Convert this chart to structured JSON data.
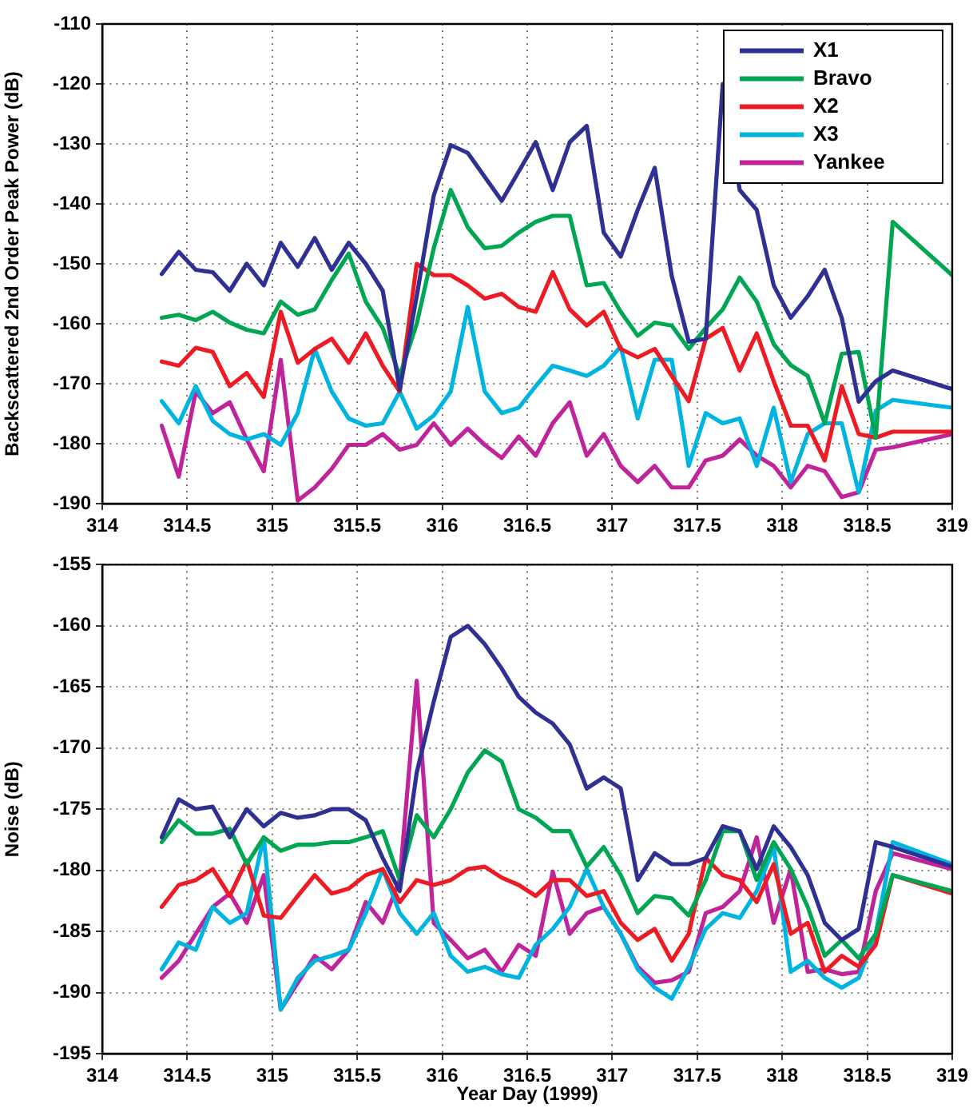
{
  "chart_data": [
    {
      "type": "line",
      "ylabel": "Backscattered 2nd Order Peak Power (dB)",
      "x": [
        314.35,
        314.45,
        314.55,
        314.65,
        314.75,
        314.85,
        314.95,
        315.05,
        315.15,
        315.25,
        315.35,
        315.45,
        315.55,
        315.65,
        315.75,
        315.85,
        315.95,
        316.05,
        316.15,
        316.25,
        316.35,
        316.45,
        316.55,
        316.65,
        316.75,
        316.85,
        316.95,
        317.05,
        317.15,
        317.25,
        317.35,
        317.45,
        317.55,
        317.65,
        317.75,
        317.85,
        317.95,
        318.05,
        318.15,
        318.25,
        318.35,
        318.45,
        318.55,
        318.65,
        319
      ],
      "series": [
        {
          "name": "X1",
          "color": "#2e3192",
          "values": [
            -151.7,
            -148,
            -151,
            -151.4,
            -154.5,
            -150,
            -153.6,
            -146.5,
            -150.5,
            -145.7,
            -151,
            -146.5,
            -150,
            -154.5,
            -171,
            -155.4,
            -138.6,
            -130.2,
            -131.5,
            -135.5,
            -139.5,
            -134.6,
            -129.7,
            -137.7,
            -129.7,
            -127,
            -144.8,
            -148.8,
            -141,
            -134,
            -152,
            -163,
            -162.5,
            -120,
            -137.7,
            -141,
            -153.6,
            -159,
            -155.4,
            -151,
            -159,
            -173,
            -169.6,
            -167.8,
            -170.9
          ]
        },
        {
          "name": "Bravo",
          "color": "#00a651",
          "values": [
            -159,
            -158.5,
            -159.4,
            -158,
            -159.8,
            -161,
            -161.6,
            -156.3,
            -158.5,
            -157.6,
            -152.7,
            -148.3,
            -156.3,
            -160.7,
            -168.7,
            -160,
            -147.4,
            -137.7,
            -143.9,
            -147.4,
            -147,
            -144.8,
            -143,
            -142,
            -142,
            -153.6,
            -153.2,
            -158,
            -162,
            -159.8,
            -160.3,
            -164.2,
            -160.7,
            -157.6,
            -152.3,
            -156.3,
            -163.4,
            -166.9,
            -168.7,
            -176.6,
            -165,
            -164.7,
            -179,
            -143,
            -151.9
          ]
        },
        {
          "name": "X2",
          "color": "#ed1c24",
          "values": [
            -166.3,
            -167,
            -164,
            -164.7,
            -170.4,
            -168.2,
            -172.2,
            -158,
            -166.5,
            -164.2,
            -162.5,
            -166.5,
            -161.6,
            -167,
            -171.3,
            -150,
            -151.9,
            -151.9,
            -153.6,
            -155.8,
            -155,
            -157.2,
            -158,
            -151.4,
            -157.6,
            -160.3,
            -158,
            -164.2,
            -165.6,
            -164.2,
            -168.7,
            -172.9,
            -162.5,
            -160.7,
            -167.8,
            -161.6,
            -169.6,
            -177,
            -177,
            -182.8,
            -170.4,
            -178.4,
            -179,
            -178,
            -178
          ]
        },
        {
          "name": "X3",
          "color": "#00b4e0",
          "values": [
            -172.9,
            -176.6,
            -170.4,
            -176.2,
            -178.4,
            -179.3,
            -178.4,
            -180.2,
            -174.9,
            -164.2,
            -171.3,
            -175.8,
            -177,
            -176.6,
            -171.3,
            -177.5,
            -175.3,
            -171.3,
            -157.2,
            -171.3,
            -174.9,
            -174,
            -170.4,
            -167,
            -167.8,
            -168.7,
            -167,
            -163.8,
            -175.8,
            -166,
            -166,
            -183.7,
            -174.9,
            -176.6,
            -175.8,
            -183.7,
            -174,
            -186.4,
            -178.4,
            -176.6,
            -176.6,
            -188.1,
            -174.5,
            -172.7,
            -174
          ]
        },
        {
          "name": "Yankee",
          "color": "#c0249a",
          "values": [
            -177,
            -185.5,
            -171.3,
            -174.9,
            -173.1,
            -179.3,
            -184.6,
            -166,
            -189.5,
            -187.3,
            -184.2,
            -180.2,
            -180.2,
            -178.4,
            -181,
            -180.2,
            -176.6,
            -180.2,
            -177.5,
            -180.2,
            -182.4,
            -178.8,
            -182,
            -176.6,
            -173.1,
            -182,
            -178.4,
            -183.7,
            -186.4,
            -183.7,
            -187.3,
            -187.3,
            -182.8,
            -182,
            -179.3,
            -182,
            -183.7,
            -187.3,
            -183.7,
            -184.6,
            -188.9,
            -188.1,
            -181,
            -180.6,
            -178.4
          ]
        }
      ],
      "xlim": [
        314,
        319
      ],
      "xticks": [
        314,
        314.5,
        315,
        315.5,
        316,
        316.5,
        317,
        317.5,
        318,
        318.5,
        319
      ],
      "ylim": [
        -190,
        -110
      ],
      "yticks": [
        -190,
        -180,
        -170,
        -160,
        -150,
        -140,
        -130,
        -120,
        -110
      ],
      "grid": true,
      "legend": "top right"
    },
    {
      "type": "line",
      "xlabel": "Year Day (1999)",
      "ylabel": "Noise (dB)",
      "x": [
        314.35,
        314.45,
        314.55,
        314.65,
        314.75,
        314.85,
        314.95,
        315.05,
        315.15,
        315.25,
        315.35,
        315.45,
        315.55,
        315.65,
        315.75,
        315.85,
        315.95,
        316.05,
        316.15,
        316.25,
        316.35,
        316.45,
        316.55,
        316.65,
        316.75,
        316.85,
        316.95,
        317.05,
        317.15,
        317.25,
        317.35,
        317.45,
        317.55,
        317.65,
        317.75,
        317.85,
        317.95,
        318.05,
        318.15,
        318.25,
        318.35,
        318.45,
        318.55,
        318.65,
        319
      ],
      "series": [
        {
          "color": "#2e3192",
          "values": [
            -177.3,
            -174.2,
            -175,
            -174.8,
            -177.3,
            -175,
            -176.4,
            -175.3,
            -175.7,
            -175.5,
            -175,
            -175,
            -175.9,
            -179,
            -181.7,
            -172,
            -166.2,
            -160.9,
            -160,
            -161.5,
            -163.5,
            -165.8,
            -167.1,
            -168,
            -169.7,
            -173.3,
            -172.4,
            -173.3,
            -180.8,
            -178.6,
            -179.5,
            -179.5,
            -179,
            -176.4,
            -176.8,
            -179.9,
            -176.4,
            -178.1,
            -180.4,
            -184.3,
            -185.7,
            -184.8,
            -177.7,
            -178.1,
            -179.7
          ]
        },
        {
          "color": "#00a651",
          "values": [
            -177.7,
            -175.9,
            -177,
            -177,
            -176.6,
            -179.5,
            -177.3,
            -178.4,
            -177.9,
            -177.9,
            -177.7,
            -177.7,
            -177.3,
            -176.8,
            -180.8,
            -175.5,
            -177.3,
            -175,
            -172,
            -170.2,
            -171.1,
            -175,
            -175.7,
            -176.8,
            -176.8,
            -179.7,
            -178.1,
            -180.4,
            -183.5,
            -182.1,
            -182.3,
            -183.7,
            -180.8,
            -176.8,
            -176.8,
            -180.8,
            -177.7,
            -179.9,
            -183,
            -187,
            -185.7,
            -187.2,
            -185.2,
            -180.4,
            -181.7
          ]
        },
        {
          "color": "#ed1c24",
          "values": [
            -183,
            -181.2,
            -180.8,
            -179.9,
            -182.1,
            -179.2,
            -183.7,
            -183.9,
            -182.1,
            -180.4,
            -181.9,
            -181.5,
            -180.4,
            -179.9,
            -182.6,
            -180.8,
            -181.2,
            -180.8,
            -179.9,
            -179.7,
            -180.6,
            -181.2,
            -182.1,
            -180.8,
            -180.8,
            -182.1,
            -181.7,
            -184.3,
            -185.7,
            -184.8,
            -187.4,
            -185.2,
            -179,
            -180.4,
            -180.8,
            -182.6,
            -179.5,
            -185.2,
            -184.3,
            -188.3,
            -187,
            -187.9,
            -186.1,
            -180.4,
            -181.9
          ]
        },
        {
          "color": "#00b4e0",
          "values": [
            -188.1,
            -185.9,
            -186.5,
            -183,
            -184.3,
            -183.5,
            -177.3,
            -191.4,
            -188.8,
            -187.4,
            -187,
            -186.5,
            -183.5,
            -179.9,
            -183.5,
            -185.2,
            -183.5,
            -187,
            -188.3,
            -187.9,
            -188.5,
            -188.8,
            -186.1,
            -184.8,
            -183,
            -179.9,
            -183,
            -185.2,
            -188.1,
            -189.6,
            -190.5,
            -187.9,
            -184.8,
            -183.5,
            -183.9,
            -181.7,
            -178.1,
            -188.3,
            -187.4,
            -188.8,
            -189.6,
            -188.8,
            -185.2,
            -177.7,
            -179.5
          ]
        },
        {
          "color": "#c0249a",
          "values": [
            -188.8,
            -187.4,
            -185.2,
            -183,
            -181.9,
            -184.3,
            -180.4,
            -191.4,
            -189.2,
            -187,
            -188.1,
            -186.5,
            -182.6,
            -184.3,
            -180.8,
            -164.5,
            -184.3,
            -185.7,
            -187.2,
            -186.5,
            -188.3,
            -186.1,
            -187,
            -180.1,
            -185.2,
            -183.5,
            -183,
            -185.2,
            -187.9,
            -189.2,
            -189,
            -188.3,
            -183.5,
            -183,
            -181.7,
            -177.3,
            -184.3,
            -179.9,
            -188.3,
            -188.1,
            -188.5,
            -188.3,
            -181.7,
            -178.6,
            -179.9
          ]
        }
      ],
      "xlim": [
        314,
        319
      ],
      "xticks": [
        314,
        314.5,
        315,
        315.5,
        316,
        316.5,
        317,
        317.5,
        318,
        318.5,
        319
      ],
      "ylim": [
        -195,
        -155
      ],
      "yticks": [
        -195,
        -190,
        -185,
        -180,
        -175,
        -170,
        -165,
        -160,
        -155
      ],
      "grid": true
    }
  ]
}
